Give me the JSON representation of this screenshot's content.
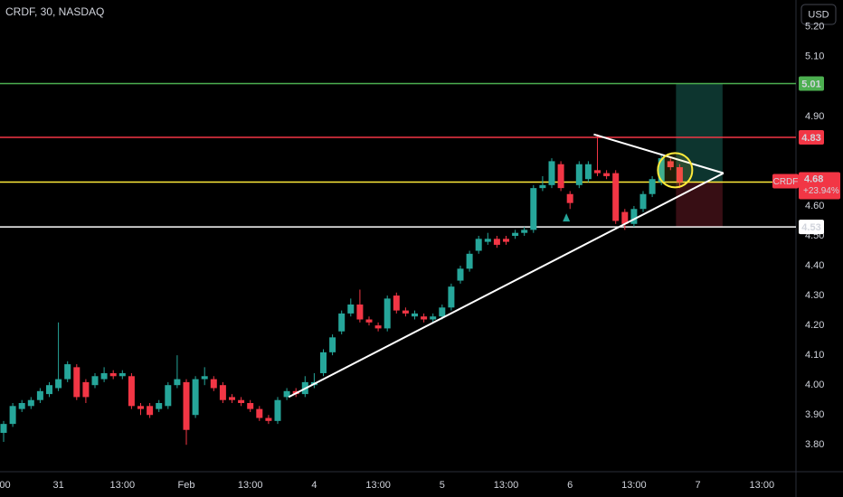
{
  "chart_data": {
    "type": "candlestick",
    "title": "CRDF, 30, NASDAQ",
    "currency": "USD",
    "up_color": "#26a69a",
    "down_color": "#f23645",
    "categories": [
      ":00",
      null,
      null,
      null,
      null,
      null,
      "31",
      null,
      null,
      null,
      null,
      null,
      null,
      "13:00",
      null,
      null,
      null,
      null,
      null,
      null,
      "Feb",
      null,
      null,
      null,
      null,
      null,
      null,
      "13:00",
      null,
      null,
      null,
      null,
      null,
      null,
      "4",
      null,
      null,
      null,
      null,
      null,
      null,
      "13:00",
      null,
      null,
      null,
      null,
      null,
      null,
      "5",
      null,
      null,
      null,
      null,
      null,
      null,
      "13:00",
      null,
      null,
      null,
      null,
      null,
      null,
      "6",
      null,
      null,
      null,
      null,
      null,
      null,
      "13:00",
      null,
      null,
      null,
      null,
      null,
      null,
      "7",
      null,
      null,
      null,
      null,
      null,
      null,
      "13:00",
      null,
      null
    ],
    "open": [
      3.84,
      3.87,
      3.92,
      3.93,
      3.95,
      3.97,
      3.99,
      4.02,
      4.06,
      4.01,
      4.0,
      4.02,
      4.04,
      4.03,
      4.03,
      3.93,
      3.93,
      3.92,
      3.93,
      4.0,
      4.01,
      3.9,
      4.02,
      4.02,
      4.0,
      3.96,
      3.95,
      3.94,
      3.92,
      3.89,
      3.88,
      3.96,
      3.98,
      3.97,
      4.0,
      4.04,
      4.11,
      4.18,
      4.24,
      4.27,
      4.22,
      4.2,
      4.19,
      4.3,
      4.25,
      4.23,
      4.23,
      4.22,
      4.23,
      4.26,
      4.35,
      4.39,
      4.45,
      4.48,
      4.49,
      4.49,
      4.5,
      4.51,
      4.52,
      4.66,
      4.67,
      4.74,
      4.64,
      4.67,
      4.69,
      4.72,
      4.71,
      4.71,
      4.58,
      4.54,
      4.59,
      4.64,
      4.68,
      4.75,
      4.73,
      null,
      null,
      null,
      null,
      null,
      null,
      null,
      null,
      null,
      null,
      null
    ],
    "high": [
      3.88,
      3.94,
      3.95,
      3.96,
      3.99,
      4.01,
      4.21,
      4.08,
      4.07,
      4.02,
      4.04,
      4.06,
      4.05,
      4.05,
      4.04,
      3.94,
      3.94,
      3.95,
      4.01,
      4.1,
      4.02,
      4.03,
      4.06,
      4.03,
      4.01,
      3.97,
      3.96,
      3.95,
      3.93,
      3.9,
      3.96,
      3.99,
      3.99,
      4.03,
      4.04,
      4.12,
      4.17,
      4.25,
      4.29,
      4.32,
      4.23,
      4.21,
      4.3,
      4.31,
      4.26,
      4.25,
      4.24,
      4.24,
      4.27,
      4.34,
      4.4,
      4.45,
      4.5,
      4.51,
      4.5,
      4.5,
      4.52,
      4.53,
      4.67,
      4.7,
      4.76,
      4.75,
      4.65,
      4.75,
      4.75,
      4.84,
      4.72,
      4.72,
      4.59,
      4.6,
      4.65,
      4.7,
      4.77,
      4.76,
      4.74,
      null,
      null,
      null,
      null,
      null,
      null,
      null,
      null,
      null,
      null,
      null
    ],
    "low": [
      3.81,
      3.86,
      3.91,
      3.92,
      3.94,
      3.96,
      3.98,
      4.01,
      3.95,
      3.94,
      3.99,
      4.01,
      4.02,
      4.02,
      3.92,
      3.9,
      3.89,
      3.91,
      3.92,
      3.99,
      3.8,
      3.89,
      4.0,
      3.98,
      3.94,
      3.94,
      3.93,
      3.91,
      3.88,
      3.87,
      3.87,
      3.95,
      3.96,
      3.96,
      3.99,
      4.03,
      4.1,
      4.17,
      4.23,
      4.21,
      4.2,
      4.18,
      4.18,
      4.24,
      4.23,
      4.22,
      4.21,
      4.21,
      4.22,
      4.25,
      4.34,
      4.38,
      4.44,
      4.47,
      4.46,
      4.47,
      4.49,
      4.5,
      4.51,
      4.65,
      4.66,
      4.65,
      4.59,
      4.66,
      4.68,
      4.7,
      4.69,
      4.54,
      4.52,
      4.53,
      4.58,
      4.63,
      4.67,
      4.72,
      4.66,
      null,
      null,
      null,
      null,
      null,
      null,
      null,
      null,
      null,
      null,
      null
    ],
    "close": [
      3.87,
      3.93,
      3.94,
      3.95,
      3.98,
      4.0,
      4.02,
      4.07,
      3.96,
      3.96,
      4.03,
      4.04,
      4.03,
      4.04,
      3.93,
      3.92,
      3.9,
      3.94,
      4.0,
      4.02,
      3.85,
      4.02,
      4.03,
      3.99,
      3.95,
      3.95,
      3.94,
      3.92,
      3.89,
      3.88,
      3.95,
      3.98,
      3.97,
      4.01,
      4.01,
      4.11,
      4.16,
      4.24,
      4.27,
      4.22,
      4.21,
      4.19,
      4.29,
      4.25,
      4.24,
      4.24,
      4.22,
      4.23,
      4.26,
      4.33,
      4.39,
      4.44,
      4.49,
      4.49,
      4.47,
      4.48,
      4.51,
      4.52,
      4.66,
      4.67,
      4.75,
      4.66,
      4.61,
      4.74,
      4.74,
      4.71,
      4.7,
      4.55,
      4.54,
      4.59,
      4.64,
      4.69,
      4.76,
      4.73,
      4.68,
      null,
      null,
      null,
      null,
      null,
      null,
      null,
      null,
      null,
      null,
      null
    ],
    "ylim": [
      3.71,
      5.29
    ],
    "yticks": [
      {
        "value": 5.2,
        "label": "5.20"
      },
      {
        "value": 5.1,
        "label": "5.10"
      },
      {
        "value": 4.9,
        "label": "4.90"
      },
      {
        "value": 4.6,
        "label": "4.60"
      },
      {
        "value": 4.5,
        "label": "4.50"
      },
      {
        "value": 4.4,
        "label": "4.40"
      },
      {
        "value": 4.3,
        "label": "4.30"
      },
      {
        "value": 4.2,
        "label": "4.20"
      },
      {
        "value": 4.1,
        "label": "4.10"
      },
      {
        "value": 4,
        "label": "4.00"
      },
      {
        "value": 3.9,
        "label": "3.90"
      },
      {
        "value": 3.8,
        "label": "3.80"
      }
    ],
    "levels": [
      {
        "value": 5.01,
        "color": "#4caf50"
      },
      {
        "value": 4.83,
        "color": "#f23645"
      },
      {
        "value": 4.53,
        "color": "#ffffff"
      }
    ],
    "last_price": {
      "symbol": "CRDF",
      "value": 4.68,
      "change": "+23.94%",
      "color": "#ffeb3b"
    },
    "trendlines": [
      {
        "x": [
          31.2,
          78.8
        ],
        "y": [
          3.96,
          4.71
        ]
      },
      {
        "x": [
          64.6,
          78.8
        ],
        "y": [
          4.84,
          4.71
        ]
      }
    ],
    "position": {
      "x": [
        73.6,
        78.7
      ],
      "entry": 4.68,
      "target": 5.01,
      "stop": 4.53
    },
    "circle": {
      "x": 73.5,
      "y": 4.72
    },
    "marker": {
      "x": 61.6,
      "y": 4.56
    }
  }
}
